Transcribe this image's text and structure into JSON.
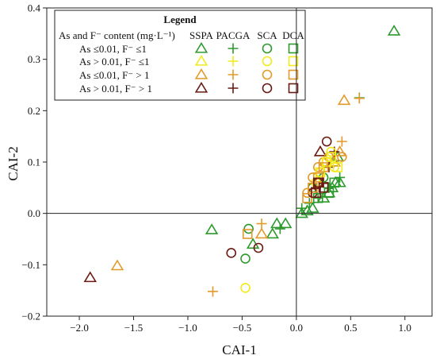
{
  "chart_data": {
    "type": "scatter",
    "xlabel": "CAI-1",
    "ylabel": "CAI-2",
    "xlim": [
      -2.3,
      1.25
    ],
    "ylim": [
      -0.2,
      0.4
    ],
    "xticks": [
      -2.0,
      -1.5,
      -1.0,
      -0.5,
      0.0,
      0.5,
      1.0
    ],
    "xtick_labels": [
      "−2.0",
      "−1.5",
      "−1.0",
      "−0.5",
      "0.0",
      "0.5",
      "1.0"
    ],
    "yticks": [
      -0.2,
      -0.1,
      0.0,
      0.1,
      0.2,
      0.3,
      0.4
    ],
    "ytick_labels": [
      "−0.2",
      "−0.1",
      "0.0",
      "0.1",
      "0.2",
      "0.3",
      "0.4"
    ],
    "grid": false,
    "reference_lines": {
      "x": 0,
      "y": 0
    },
    "legend": {
      "title": "Legend",
      "placement": "top-left",
      "header": "As and F⁻ content (mg·L⁻¹)",
      "methods": [
        "SSPA",
        "PACGA",
        "SCA",
        "DCA"
      ],
      "rows": [
        "As ≤0.01, F⁻ ≤1",
        "As > 0.01, F⁻ ≤1",
        "As ≤0.01, F⁻ > 1",
        "As > 0.01, F⁻ > 1"
      ]
    },
    "markers": {
      "SSPA": "triangle",
      "PACGA": "plus",
      "SCA": "circle",
      "DCA": "square"
    },
    "colors": [
      "#2e9a2e",
      "#f2ea1a",
      "#e39a2a",
      "#6a1a12"
    ],
    "series": [
      {
        "method": "SSPA",
        "group": 0,
        "points": [
          [
            0.9,
            0.355
          ],
          [
            -0.78,
            -0.032
          ],
          [
            -0.22,
            -0.04
          ],
          [
            -0.4,
            -0.06
          ],
          [
            -0.18,
            -0.02
          ],
          [
            -0.1,
            -0.02
          ],
          [
            0.15,
            0.01
          ],
          [
            0.25,
            0.03
          ],
          [
            0.3,
            0.04
          ],
          [
            0.33,
            0.05
          ],
          [
            0.36,
            0.06
          ],
          [
            0.4,
            0.06
          ],
          [
            0.34,
            0.1
          ],
          [
            0.38,
            0.11
          ],
          [
            0.1,
            0.005
          ],
          [
            0.05,
            0.0
          ]
        ]
      },
      {
        "method": "SSPA",
        "group": 2,
        "points": [
          [
            -1.65,
            -0.102
          ],
          [
            0.44,
            0.22
          ],
          [
            -0.32,
            -0.04
          ],
          [
            0.35,
            0.1
          ],
          [
            0.4,
            0.12
          ]
        ]
      },
      {
        "method": "SSPA",
        "group": 3,
        "points": [
          [
            -1.9,
            -0.125
          ],
          [
            0.22,
            0.12
          ]
        ]
      },
      {
        "method": "PACGA",
        "group": 0,
        "points": [
          [
            0.58,
            0.225
          ],
          [
            -0.15,
            -0.03
          ],
          [
            0.05,
            0.01
          ],
          [
            0.2,
            0.03
          ],
          [
            0.3,
            0.05
          ],
          [
            0.4,
            0.07
          ],
          [
            0.12,
            0.02
          ]
        ]
      },
      {
        "method": "PACGA",
        "group": 2,
        "points": [
          [
            -0.77,
            -0.152
          ],
          [
            0.58,
            0.224
          ],
          [
            0.42,
            0.14
          ],
          [
            -0.32,
            -0.02
          ]
        ]
      },
      {
        "method": "PACGA",
        "group": 3,
        "points": [
          [
            0.25,
            0.06
          ],
          [
            0.3,
            0.09
          ],
          [
            0.18,
            0.05
          ],
          [
            0.35,
            0.12
          ]
        ]
      },
      {
        "method": "SCA",
        "group": 0,
        "points": [
          [
            -0.44,
            -0.03
          ],
          [
            -0.47,
            -0.088
          ],
          [
            0.15,
            0.05
          ],
          [
            0.2,
            0.06
          ],
          [
            0.25,
            0.07
          ]
        ]
      },
      {
        "method": "SCA",
        "group": 1,
        "points": [
          [
            -0.47,
            -0.145
          ],
          [
            0.22,
            0.08
          ],
          [
            0.28,
            0.1
          ],
          [
            0.35,
            0.09
          ],
          [
            0.32,
            0.12
          ],
          [
            0.18,
            0.06
          ]
        ]
      },
      {
        "method": "SCA",
        "group": 2,
        "points": [
          [
            0.2,
            0.09
          ],
          [
            0.25,
            0.1
          ],
          [
            0.3,
            0.11
          ],
          [
            0.42,
            0.11
          ],
          [
            0.15,
            0.07
          ],
          [
            0.1,
            0.04
          ]
        ]
      },
      {
        "method": "SCA",
        "group": 3,
        "points": [
          [
            -0.6,
            -0.077
          ],
          [
            -0.35,
            -0.067
          ],
          [
            0.28,
            0.14
          ],
          [
            0.2,
            0.06
          ],
          [
            0.15,
            0.04
          ]
        ]
      },
      {
        "method": "DCA",
        "group": 0,
        "points": [
          [
            0.3,
            0.04
          ],
          [
            0.35,
            0.06
          ],
          [
            0.2,
            0.03
          ]
        ]
      },
      {
        "method": "DCA",
        "group": 1,
        "points": [
          [
            0.28,
            0.1
          ],
          [
            0.32,
            0.11
          ],
          [
            0.38,
            0.09
          ],
          [
            0.22,
            0.08
          ]
        ]
      },
      {
        "method": "DCA",
        "group": 2,
        "points": [
          [
            -0.45,
            -0.04
          ],
          [
            0.2,
            0.07
          ],
          [
            0.25,
            0.09
          ],
          [
            0.1,
            0.03
          ],
          [
            0.15,
            0.05
          ]
        ]
      },
      {
        "method": "DCA",
        "group": 3,
        "points": [
          [
            0.2,
            0.06
          ],
          [
            0.25,
            0.05
          ],
          [
            0.18,
            0.04
          ]
        ]
      }
    ]
  }
}
